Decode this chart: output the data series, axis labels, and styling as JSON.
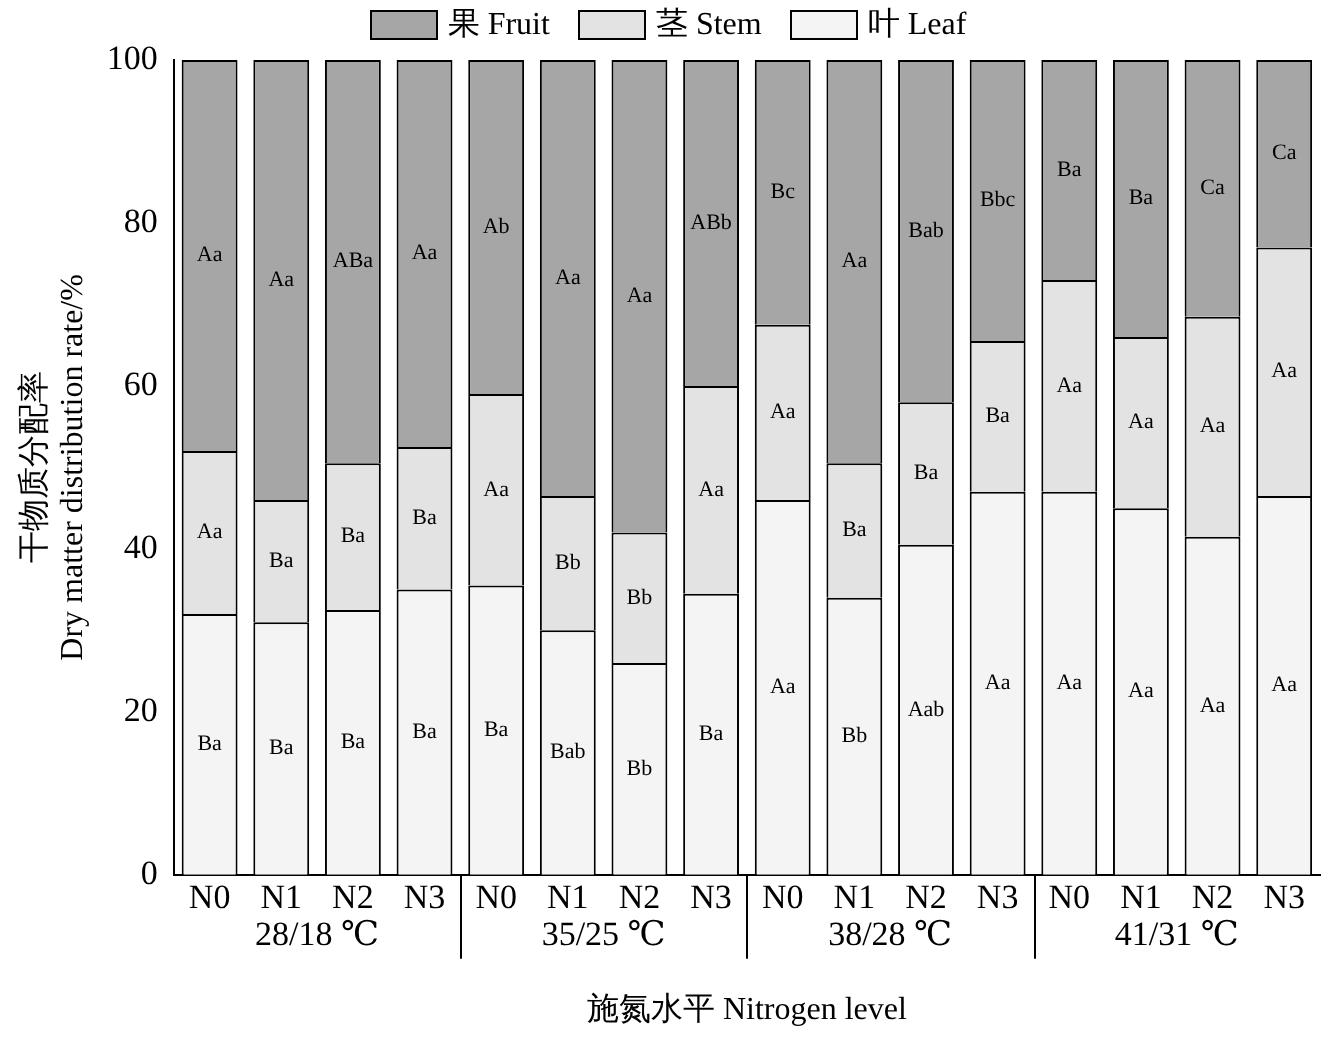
{
  "chart_data": {
    "type": "bar",
    "stacked": true,
    "xlabel": "施氮水平 Nitrogen level",
    "ylabel": "干物质分配率\nDry matter distribution rate/%",
    "categories": [
      "N0",
      "N1",
      "N2",
      "N3",
      "N0",
      "N1",
      "N2",
      "N3",
      "N0",
      "N1",
      "N2",
      "N3",
      "N0",
      "N1",
      "N2",
      "N3"
    ],
    "series": [
      {
        "name": "叶 Leaf",
        "color": "#f4f4f4",
        "values": [
          32,
          31,
          32.5,
          35,
          35.5,
          30,
          26,
          34.5,
          46,
          34,
          40.5,
          47,
          47,
          45,
          41.5,
          46.5
        ],
        "value_labels": [
          "Ba",
          "Ba",
          "Ba",
          "Ba",
          "Ba",
          "Bab",
          "Bb",
          "Ba",
          "Aa",
          "Bb",
          "Aab",
          "Aa",
          "Aa",
          "Aa",
          "Aa",
          "Aa"
        ]
      },
      {
        "name": "茎 Stem",
        "color": "#e3e3e3",
        "values": [
          20,
          15,
          18,
          17.5,
          23.5,
          16.5,
          16,
          25.5,
          21.5,
          16.5,
          17.5,
          18.5,
          26,
          21,
          27,
          30.5
        ],
        "value_labels": [
          "Aa",
          "Ba",
          "Ba",
          "Ba",
          "Aa",
          "Bb",
          "Bb",
          "Aa",
          "Aa",
          "Ba",
          "Ba",
          "Ba",
          "Aa",
          "Aa",
          "Aa",
          "Aa"
        ]
      },
      {
        "name": "果 Fruit",
        "color": "#a6a6a6",
        "values": [
          48,
          54,
          49.5,
          47.5,
          41,
          53.5,
          58,
          40,
          32.5,
          49.5,
          42,
          34.5,
          27,
          34,
          31.5,
          23
        ],
        "value_labels": [
          "Aa",
          "Aa",
          "ABa",
          "Aa",
          "Ab",
          "Aa",
          "Aa",
          "ABb",
          "Bc",
          "Aa",
          "Bab",
          "Bbc",
          "Ba",
          "Ba",
          "Ca",
          "Ca"
        ]
      }
    ],
    "ylim": [
      0,
      100
    ],
    "yticks": [
      0,
      20,
      40,
      60,
      80,
      100
    ],
    "grid": false,
    "legend": "top",
    "annotations": [
      "28/18 ℃",
      "35/25 ℃",
      "38/28 ℃",
      "41/31 ℃"
    ]
  }
}
